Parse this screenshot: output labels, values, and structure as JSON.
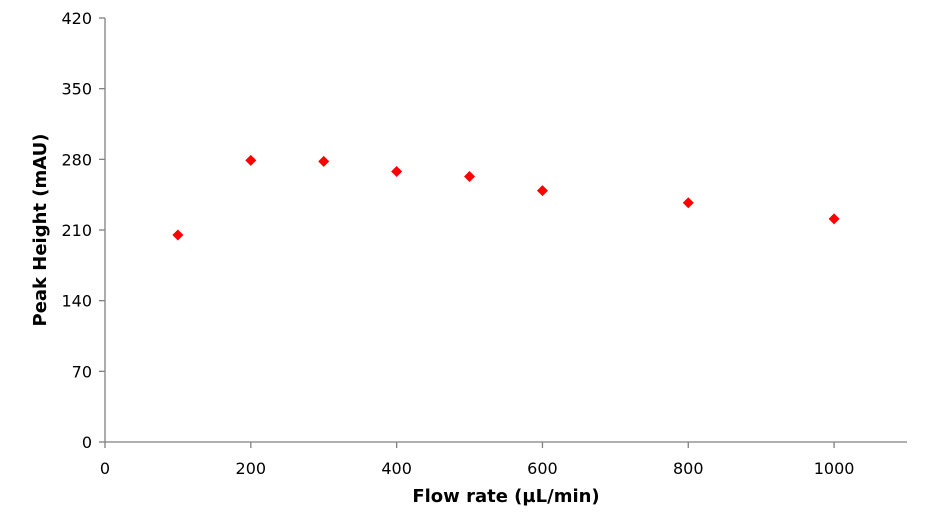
{
  "chart_data": {
    "type": "scatter",
    "title": "",
    "xlabel": "Flow rate (µL/min)",
    "ylabel": "Peak Height (mAU)",
    "xlim": [
      0,
      1100
    ],
    "ylim": [
      0,
      420
    ],
    "xticks": [
      0,
      200,
      400,
      600,
      800,
      1000
    ],
    "yticks": [
      0,
      70,
      140,
      210,
      280,
      350,
      420
    ],
    "grid": false,
    "legend": "none",
    "marker": "diamond",
    "series": [
      {
        "color": "#FF0000",
        "points": [
          {
            "x": 100,
            "y": 205
          },
          {
            "x": 200,
            "y": 279
          },
          {
            "x": 300,
            "y": 278
          },
          {
            "x": 400,
            "y": 268
          },
          {
            "x": 500,
            "y": 263
          },
          {
            "x": 600,
            "y": 249
          },
          {
            "x": 800,
            "y": 237
          },
          {
            "x": 1000,
            "y": 221
          }
        ]
      }
    ]
  }
}
